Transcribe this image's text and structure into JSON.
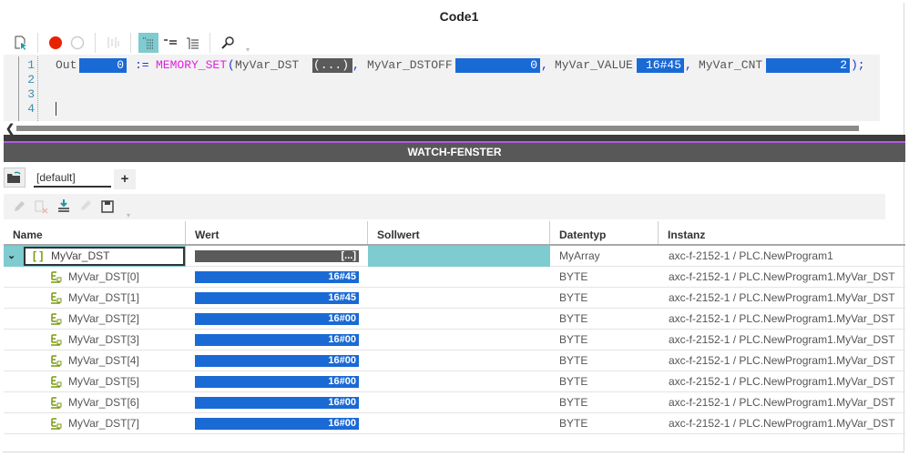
{
  "window": {
    "title": "Code1"
  },
  "toolbar": {
    "icons": [
      "select-cursor-icon",
      "breakpoint-set-icon",
      "breakpoint-clear-icon",
      "step-icon",
      "tree-view-icon",
      "list-view-icon",
      "indent-list-icon",
      "search-icon"
    ]
  },
  "editor": {
    "line_numbers": [
      "1",
      "2",
      "3",
      "4"
    ],
    "line1": {
      "out": "Out",
      "out_val": "0",
      "assign": ":=",
      "func": "MEMORY_SET",
      "paren": "(",
      "p1": "MyVar_DST",
      "p1_val": "(...)",
      "c1": ",",
      "p2": "MyVar_DSTOFF",
      "p2_val": "0",
      "c2": ",",
      "p3": "MyVar_VALUE",
      "p3_val": "16#45",
      "c3": ",",
      "p4": "MyVar_CNT",
      "p4_val": "2",
      "end": ");"
    }
  },
  "watch": {
    "title": "WATCH-FENSTER",
    "tab": "[default]",
    "add_tab": "+",
    "columns": [
      "Name",
      "Wert",
      "Sollwert",
      "Datentyp",
      "Instanz"
    ],
    "root": {
      "name": "MyVar_DST",
      "value": "[...]",
      "type": "MyArray",
      "instance": "axc-f-2152-1 / PLC.NewProgram1"
    },
    "rows": [
      {
        "name": "MyVar_DST[0]",
        "value": "16#45",
        "type": "BYTE",
        "instance": "axc-f-2152-1 / PLC.NewProgram1.MyVar_DST"
      },
      {
        "name": "MyVar_DST[1]",
        "value": "16#45",
        "type": "BYTE",
        "instance": "axc-f-2152-1 / PLC.NewProgram1.MyVar_DST"
      },
      {
        "name": "MyVar_DST[2]",
        "value": "16#00",
        "type": "BYTE",
        "instance": "axc-f-2152-1 / PLC.NewProgram1.MyVar_DST"
      },
      {
        "name": "MyVar_DST[3]",
        "value": "16#00",
        "type": "BYTE",
        "instance": "axc-f-2152-1 / PLC.NewProgram1.MyVar_DST"
      },
      {
        "name": "MyVar_DST[4]",
        "value": "16#00",
        "type": "BYTE",
        "instance": "axc-f-2152-1 / PLC.NewProgram1.MyVar_DST"
      },
      {
        "name": "MyVar_DST[5]",
        "value": "16#00",
        "type": "BYTE",
        "instance": "axc-f-2152-1 / PLC.NewProgram1.MyVar_DST"
      },
      {
        "name": "MyVar_DST[6]",
        "value": "16#00",
        "type": "BYTE",
        "instance": "axc-f-2152-1 / PLC.NewProgram1.MyVar_DST"
      },
      {
        "name": "MyVar_DST[7]",
        "value": "16#00",
        "type": "BYTE",
        "instance": "axc-f-2152-1 / PLC.NewProgram1.MyVar_DST"
      }
    ]
  },
  "colors": {
    "accent": "#7ecbd0",
    "value_blue": "#1a6ad6",
    "keyword": "#e020e0",
    "purple": "#b05ce0"
  }
}
